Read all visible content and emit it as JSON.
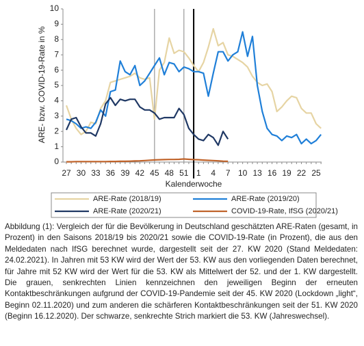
{
  "chart_data": {
    "type": "line",
    "ylabel": "ARE- bzw. COVID-19-Rate in %",
    "xlabel": "Kalenderwoche",
    "categories": [
      "27",
      null,
      null,
      "30",
      null,
      null,
      "33",
      null,
      null,
      "36",
      null,
      null,
      "39",
      null,
      null,
      "42",
      null,
      null,
      "45",
      null,
      null,
      "48",
      null,
      null,
      "51",
      null,
      null,
      "1",
      null,
      null,
      "4",
      null,
      null,
      "7",
      null,
      null,
      "10",
      null,
      null,
      "13",
      null,
      null,
      "16",
      null,
      null,
      "19",
      null,
      null,
      "22",
      null,
      null,
      "25",
      null
    ],
    "ylim": [
      0,
      10
    ],
    "yticks": [
      0,
      1,
      2,
      3,
      4,
      5,
      6,
      7,
      8,
      9,
      10
    ],
    "series": [
      {
        "name": "ARE-Rate (2018/19)",
        "color": "#e6d4a3",
        "values": [
          3.7,
          2.8,
          2.2,
          1.8,
          2.0,
          2.6,
          2.5,
          3.5,
          4.0,
          5.2,
          5.3,
          5.4,
          5.5,
          5.6,
          5.8,
          5.5,
          5.4,
          5.5,
          2.8,
          6.0,
          6.5,
          8.1,
          7.1,
          7.3,
          7.2,
          6.8,
          6.3,
          5.9,
          6.5,
          7.5,
          8.7,
          7.6,
          7.8,
          7.0,
          6.9,
          6.7,
          6.5,
          6.2,
          5.6,
          5.2,
          5.0,
          5.1,
          4.6,
          3.3,
          3.6,
          4.0,
          4.3,
          4.2,
          3.5,
          3.2,
          3.2,
          2.5,
          2.2
        ]
      },
      {
        "name": "ARE-Rate (2019/20)",
        "color": "#1f7fd8",
        "values": [
          2.8,
          2.7,
          2.5,
          2.2,
          2.3,
          2.2,
          2.6,
          3.4,
          3.0,
          4.6,
          4.7,
          6.6,
          5.9,
          5.7,
          6.3,
          5.0,
          5.3,
          5.8,
          6.3,
          6.8,
          5.7,
          6.5,
          6.4,
          5.9,
          6.2,
          6.1,
          5.9,
          5.9,
          5.8,
          4.3,
          5.8,
          7.2,
          7.2,
          6.6,
          7.0,
          7.2,
          8.5,
          6.9,
          8.2,
          5.0,
          3.3,
          2.2,
          1.8,
          1.7,
          1.4,
          1.7,
          1.6,
          1.8,
          1.2,
          1.5,
          1.2,
          1.4,
          1.8
        ]
      },
      {
        "name": "ARE-Rate (2020/21)",
        "color": "#1f3864",
        "values": [
          2.1,
          2.8,
          2.9,
          2.3,
          1.9,
          1.9,
          1.7,
          2.5,
          3.8,
          4.2,
          3.7,
          4.1,
          4.0,
          4.1,
          4.1,
          3.6,
          3.4,
          3.4,
          3.2,
          2.8,
          2.9,
          2.9,
          2.9,
          3.5,
          3.1,
          2.2,
          1.8,
          1.5,
          1.4,
          1.8,
          1.6,
          1.1,
          2.0,
          1.5,
          null,
          null,
          null,
          null,
          null,
          null,
          null,
          null,
          null,
          null,
          null,
          null,
          null,
          null,
          null,
          null,
          null,
          null,
          null
        ]
      },
      {
        "name": "COVID-19-Rate, IfSG (2020/21)",
        "color": "#c0632a",
        "values": [
          0.02,
          0.02,
          0.03,
          0.03,
          0.03,
          0.03,
          0.03,
          0.03,
          0.03,
          0.04,
          0.04,
          0.05,
          0.05,
          0.06,
          0.07,
          0.08,
          0.1,
          0.12,
          0.14,
          0.15,
          0.16,
          0.17,
          0.17,
          0.18,
          0.2,
          0.18,
          0.16,
          0.15,
          0.13,
          0.11,
          0.1,
          0.08,
          0.06,
          0.05,
          null,
          null,
          null,
          null,
          null,
          null,
          null,
          null,
          null,
          null,
          null,
          null,
          null,
          null,
          null,
          null,
          null,
          null,
          null
        ]
      }
    ],
    "vlines": [
      {
        "week": 45,
        "color": "#a0a0a0"
      },
      {
        "week": 51,
        "color": "#a0a0a0"
      },
      {
        "week": 53,
        "color": "#000000"
      }
    ]
  },
  "caption": "Abbildung (1): Vergleich der für die Bevölkerung in Deutschland geschätzten ARE-Raten (gesamt, in Prozent) in den Saisons 2018/19 bis 2020/21 sowie die COVID-19-Rate (in Prozent), die aus den Meldedaten nach IfSG berechnet wurde, dargestellt seit der 27. KW 2020 (Stand Meldedaten: 24.02.2021). In Jahren mit 53 KW wird der Wert der 53. KW aus den vorliegenden Daten berechnet, für Jahre mit 52 KW wird der Wert für die 53. KW als Mittelwert der 52. und der 1. KW dargestellt. Die grauen, senkrechten Linien kennzeichnen den jeweiligen Beginn der erneuten Kontaktbeschränkungen aufgrund der COVID-19-Pandemie seit der 45. KW 2020 (Lockdown „light“, Beginn 02.11.2020) und zum anderen die schärferen Kontaktbeschränkungen seit der 51. KW 2020 (Beginn 16.12.2020). Der schwarze, senkrechte Strich markiert die 53. KW (Jahreswechsel)."
}
